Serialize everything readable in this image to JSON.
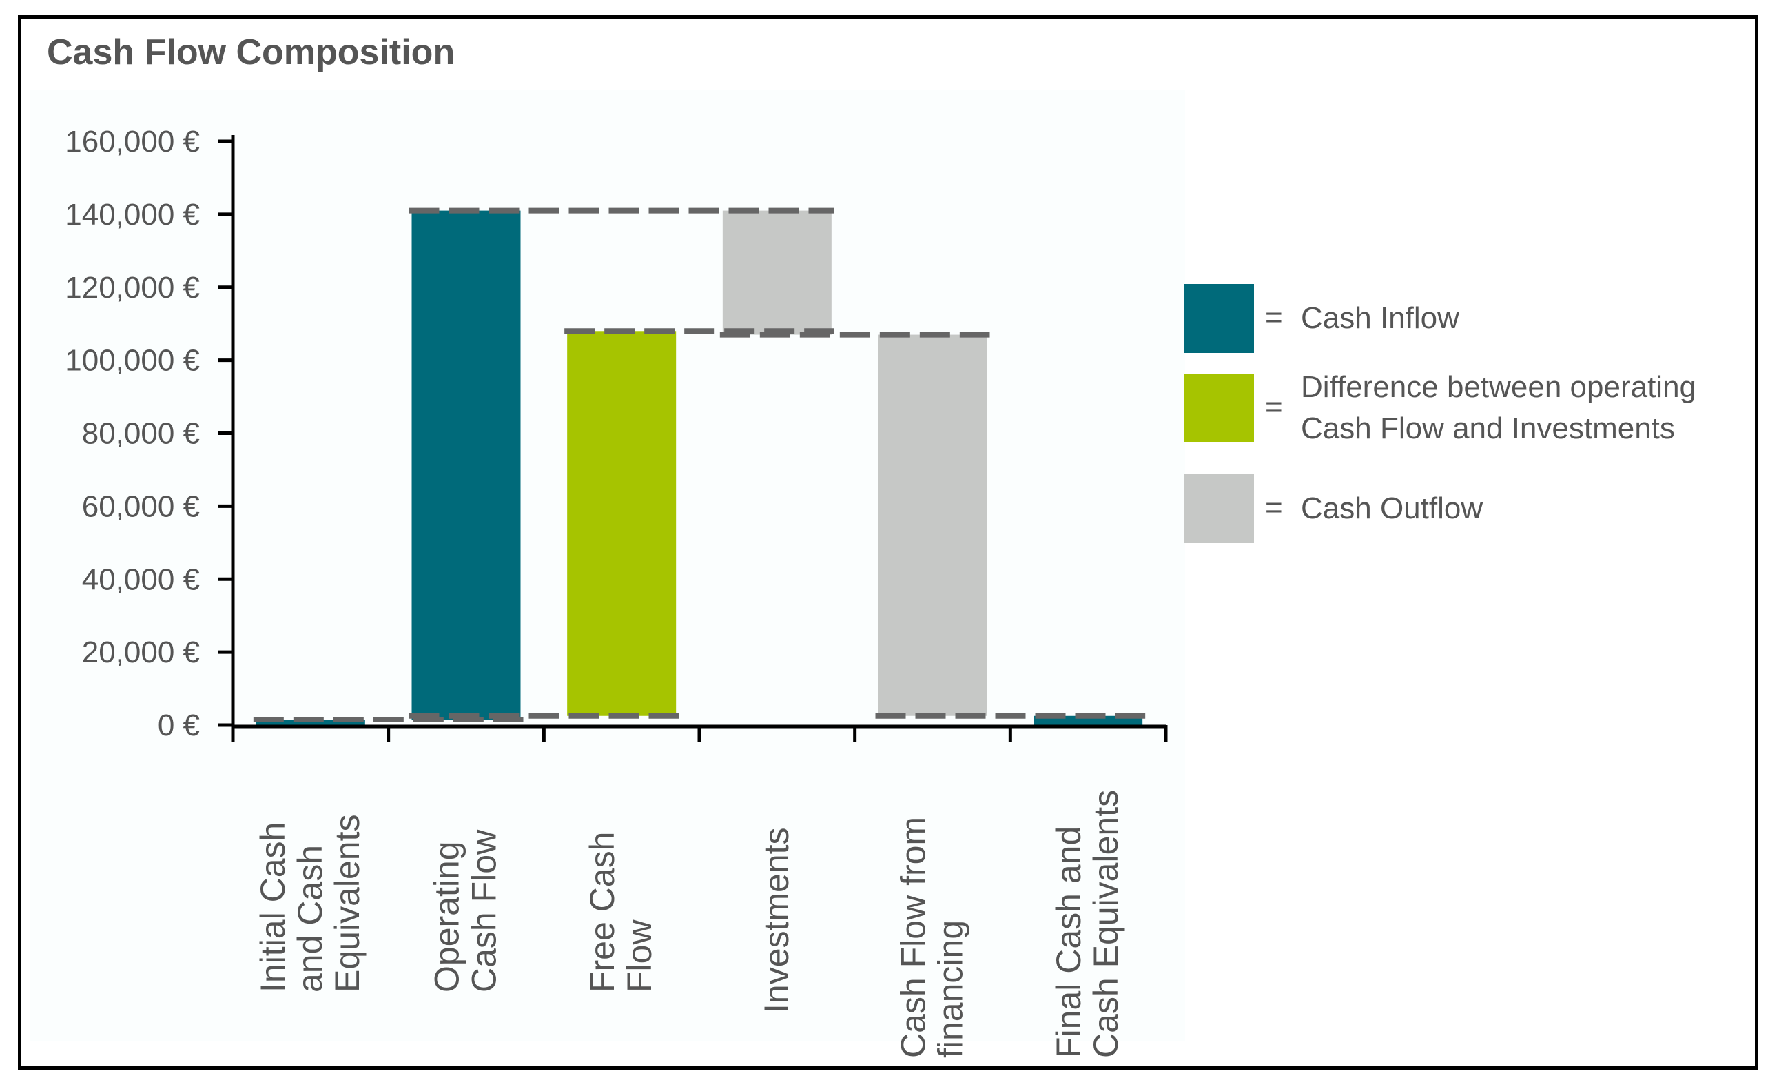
{
  "title": "Cash Flow Composition",
  "colors": {
    "inflow": "#006a7a",
    "difference": "#a6c400",
    "outflow": "#c6c8c6",
    "axis": "#000000",
    "dash": "#666666",
    "text": "#555555",
    "plot_bg": "#fbfefe"
  },
  "chart_data": {
    "type": "bar",
    "subtype": "waterfall",
    "title": "Cash Flow Composition",
    "xlabel": "",
    "ylabel": "",
    "ylim": [
      0,
      160000
    ],
    "y_tick_values": [
      0,
      20000,
      40000,
      60000,
      80000,
      100000,
      120000,
      140000,
      160000
    ],
    "y_tick_labels": [
      "0 €",
      "20,000 €",
      "40,000 €",
      "60,000 €",
      "80,000 €",
      "100,000 €",
      "120,000 €",
      "140,000 €",
      "160,000 €"
    ],
    "categories": [
      [
        "Initial Cash",
        "and Cash",
        "Equivalents"
      ],
      [
        "Operating",
        "Cash Flow"
      ],
      [
        "Free Cash",
        "Flow"
      ],
      [
        "Investments"
      ],
      [
        "Cash Flow from",
        "financing"
      ],
      [
        "Final Cash and",
        "Cash Equivalents"
      ]
    ],
    "bars": [
      {
        "category": "Initial Cash and Cash Equivalents",
        "start": 0,
        "end": 1500,
        "kind": "inflow"
      },
      {
        "category": "Operating Cash Flow",
        "start": 1500,
        "end": 141000,
        "kind": "inflow"
      },
      {
        "category": "Free Cash Flow",
        "start": 2500,
        "end": 108000,
        "kind": "difference"
      },
      {
        "category": "Investments",
        "start": 107000,
        "end": 141000,
        "kind": "outflow"
      },
      {
        "category": "Cash Flow from financing",
        "start": 2500,
        "end": 107000,
        "kind": "outflow"
      },
      {
        "category": "Final Cash and Cash Equivalents",
        "start": 0,
        "end": 2500,
        "kind": "inflow"
      }
    ],
    "connectors": [
      {
        "value": 1500,
        "from_category": 0,
        "to_category": 1
      },
      {
        "value": 141000,
        "from_category": 1,
        "to_category": 3
      },
      {
        "value": 108000,
        "from_category": 2,
        "to_category": 3
      },
      {
        "value": 107000,
        "from_category": 3,
        "to_category": 4
      },
      {
        "value": 2500,
        "from_category": 1,
        "to_category": 2
      },
      {
        "value": 2500,
        "from_category": 4,
        "to_category": 5
      }
    ],
    "legend": [
      {
        "kind": "inflow",
        "lines": [
          "Cash Inflow"
        ]
      },
      {
        "kind": "difference",
        "lines": [
          "Difference between operating",
          "Cash Flow and Investments"
        ]
      },
      {
        "kind": "outflow",
        "lines": [
          "Cash Outflow"
        ]
      }
    ],
    "legend_position": "right"
  },
  "legend_equals": "="
}
